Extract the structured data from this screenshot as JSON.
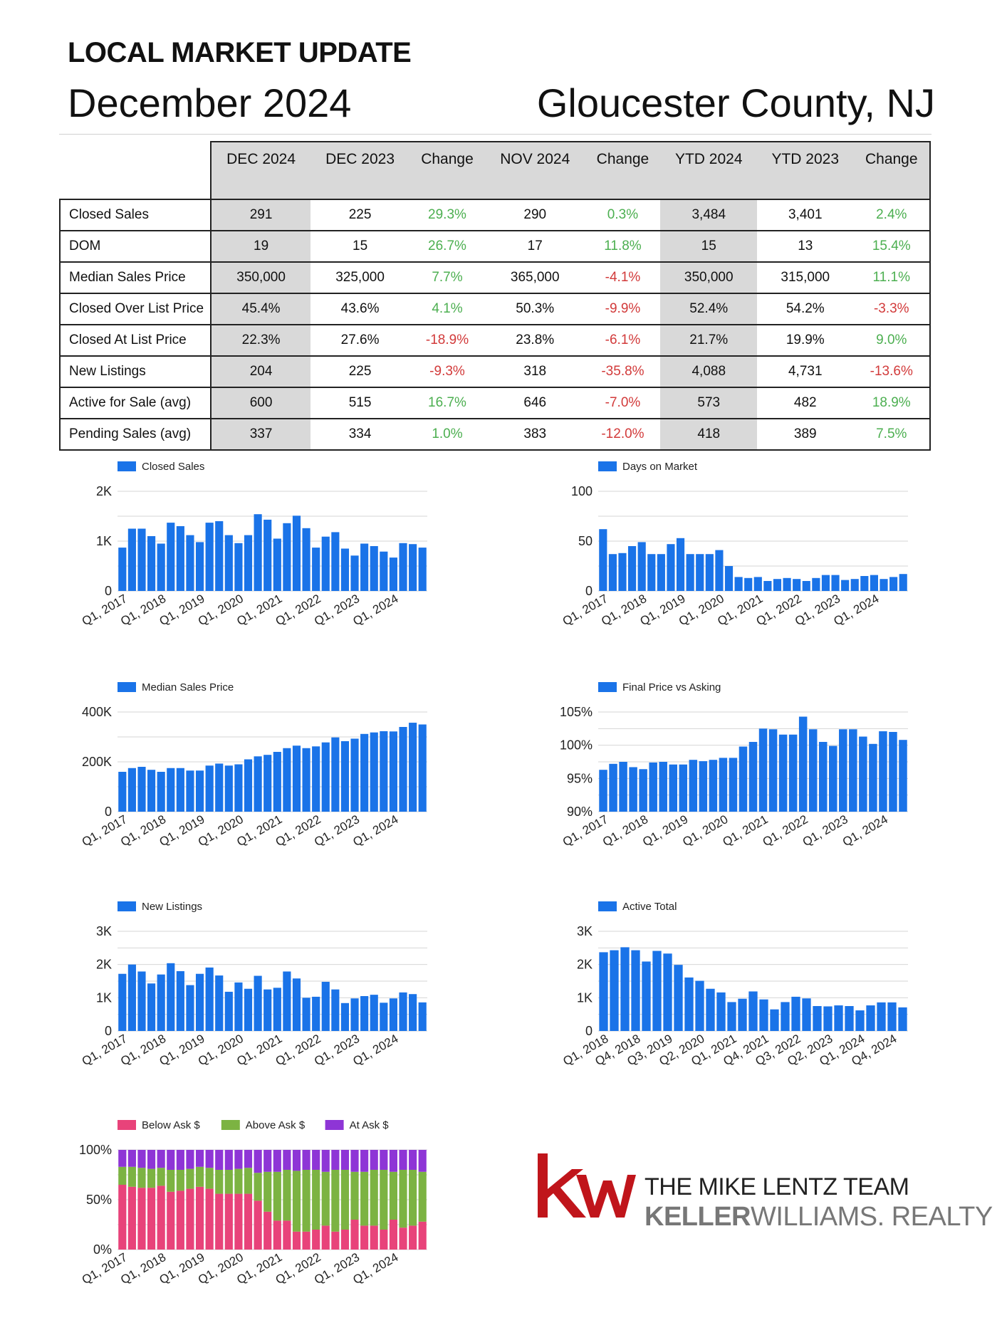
{
  "header": {
    "title": "LOCAL MARKET UPDATE",
    "date": "December 2024",
    "location": "Gloucester County, NJ"
  },
  "table": {
    "columns": [
      "DEC 2024",
      "DEC 2023",
      "Change",
      "NOV 2024",
      "Change",
      "YTD 2024",
      "YTD 2023",
      "Change"
    ],
    "rows": [
      {
        "label": "Closed Sales",
        "values": [
          "291",
          "225",
          "29.3%",
          "290",
          "0.3%",
          "3,484",
          "3,401",
          "2.4%"
        ]
      },
      {
        "label": "DOM",
        "values": [
          "19",
          "15",
          "26.7%",
          "17",
          "11.8%",
          "15",
          "13",
          "15.4%"
        ]
      },
      {
        "label": "Median Sales Price",
        "values": [
          "350,000",
          "325,000",
          "7.7%",
          "365,000",
          "-4.1%",
          "350,000",
          "315,000",
          "11.1%"
        ]
      },
      {
        "label": "Closed Over List Price",
        "values": [
          "45.4%",
          "43.6%",
          "4.1%",
          "50.3%",
          "-9.9%",
          "52.4%",
          "54.2%",
          "-3.3%"
        ]
      },
      {
        "label": "Closed At List Price",
        "values": [
          "22.3%",
          "27.6%",
          "-18.9%",
          "23.8%",
          "-6.1%",
          "21.7%",
          "19.9%",
          "9.0%"
        ]
      },
      {
        "label": "New Listings",
        "values": [
          "204",
          "225",
          "-9.3%",
          "318",
          "-35.8%",
          "4,088",
          "4,731",
          "-13.6%"
        ]
      },
      {
        "label": "Active for Sale (avg)",
        "values": [
          "600",
          "515",
          "16.7%",
          "646",
          "-7.0%",
          "573",
          "482",
          "18.9%"
        ]
      },
      {
        "label": "Pending Sales (avg)",
        "values": [
          "337",
          "334",
          "1.0%",
          "383",
          "-12.0%",
          "418",
          "389",
          "7.5%"
        ]
      }
    ],
    "positive_color": "#4caf50",
    "negative_color": "#d23a3a"
  },
  "colors": {
    "bar": "#1a73e8",
    "below": "#e8437a",
    "above": "#7cb342",
    "at": "#8e35d6",
    "grid": "#d6d6d6"
  },
  "chart_data": [
    {
      "id": "closed",
      "type": "bar",
      "title": "",
      "legend": [
        "Closed Sales"
      ],
      "ylim": [
        0,
        2000
      ],
      "yticks": [
        {
          "v": 0,
          "t": "0"
        },
        {
          "v": 1000,
          "t": "1K"
        },
        {
          "v": 2000,
          "t": "2K"
        }
      ],
      "xticks": [
        "Q1, 2017",
        "Q1, 2018",
        "Q1, 2019",
        "Q1, 2020",
        "Q1, 2021",
        "Q1, 2022",
        "Q1, 2023",
        "Q1, 2024"
      ],
      "values": [
        870,
        1250,
        1250,
        1100,
        950,
        1370,
        1300,
        1120,
        980,
        1370,
        1400,
        1120,
        960,
        1120,
        1540,
        1430,
        1050,
        1360,
        1510,
        1260,
        870,
        1090,
        1180,
        850,
        710,
        950,
        900,
        790,
        670,
        960,
        940,
        870
      ]
    },
    {
      "id": "dom",
      "type": "bar",
      "title": "",
      "legend": [
        "Days on Market"
      ],
      "ylim": [
        0,
        100
      ],
      "yticks": [
        {
          "v": 0,
          "t": "0"
        },
        {
          "v": 50,
          "t": "50"
        },
        {
          "v": 100,
          "t": "100"
        }
      ],
      "xticks": [
        "Q1, 2017",
        "Q1, 2018",
        "Q1, 2019",
        "Q1, 2020",
        "Q1, 2021",
        "Q1, 2022",
        "Q1, 2023",
        "Q1, 2024"
      ],
      "values": [
        62,
        37,
        38,
        45,
        49,
        37,
        37,
        47,
        53,
        37,
        37,
        37,
        41,
        25,
        14,
        13,
        14,
        10,
        12,
        13,
        12,
        10,
        13,
        16,
        16,
        11,
        12,
        15,
        16,
        12,
        14,
        17
      ]
    },
    {
      "id": "price",
      "type": "bar",
      "title": "",
      "legend": [
        "Median Sales Price"
      ],
      "ylim": [
        0,
        400000
      ],
      "yticks": [
        {
          "v": 0,
          "t": "0"
        },
        {
          "v": 200000,
          "t": "200K"
        },
        {
          "v": 400000,
          "t": "400K"
        }
      ],
      "xticks": [
        "Q1, 2017",
        "Q1, 2018",
        "Q1, 2019",
        "Q1, 2020",
        "Q1, 2021",
        "Q1, 2022",
        "Q1, 2023",
        "Q1, 2024"
      ],
      "values": [
        160000,
        175000,
        180000,
        168000,
        160000,
        175000,
        175000,
        165000,
        165000,
        185000,
        193000,
        185000,
        190000,
        210000,
        222000,
        228000,
        240000,
        255000,
        265000,
        255000,
        262000,
        278000,
        298000,
        283000,
        293000,
        312000,
        318000,
        323000,
        322000,
        340000,
        357000,
        350000
      ]
    },
    {
      "id": "final",
      "type": "bar",
      "title": "",
      "legend": [
        "Final Price vs Asking"
      ],
      "ylim": [
        90,
        105
      ],
      "yticks": [
        {
          "v": 90,
          "t": "90%"
        },
        {
          "v": 95,
          "t": "95%"
        },
        {
          "v": 100,
          "t": "100%"
        },
        {
          "v": 105,
          "t": "105%"
        }
      ],
      "xticks": [
        "Q1, 2017",
        "Q1, 2018",
        "Q1, 2019",
        "Q1, 2020",
        "Q1, 2021",
        "Q1, 2022",
        "Q1, 2023",
        "Q1, 2024"
      ],
      "values": [
        96.3,
        97.2,
        97.5,
        96.7,
        96.4,
        97.4,
        97.5,
        97.1,
        97.1,
        97.8,
        97.6,
        97.8,
        98.1,
        98.1,
        99.8,
        100.5,
        102.5,
        102.4,
        101.6,
        101.6,
        104.3,
        102.4,
        100.5,
        99.9,
        102.4,
        102.4,
        101.3,
        100.2,
        102.1,
        102.0,
        100.8
      ]
    },
    {
      "id": "listings",
      "type": "bar",
      "title": "",
      "legend": [
        "New Listings"
      ],
      "ylim": [
        0,
        3000
      ],
      "yticks": [
        {
          "v": 0,
          "t": "0"
        },
        {
          "v": 1000,
          "t": "1K"
        },
        {
          "v": 2000,
          "t": "2K"
        },
        {
          "v": 3000,
          "t": "3K"
        }
      ],
      "xticks": [
        "Q1, 2017",
        "Q1, 2018",
        "Q1, 2019",
        "Q1, 2020",
        "Q1, 2021",
        "Q1, 2022",
        "Q1, 2023",
        "Q1, 2024"
      ],
      "values": [
        1720,
        2000,
        1790,
        1430,
        1700,
        2040,
        1800,
        1380,
        1720,
        1910,
        1670,
        1180,
        1460,
        1270,
        1660,
        1250,
        1300,
        1790,
        1580,
        1000,
        1030,
        1480,
        1250,
        840,
        980,
        1050,
        1090,
        850,
        980,
        1160,
        1110,
        860
      ]
    },
    {
      "id": "active",
      "type": "bar",
      "title": "",
      "legend": [
        "Active Total"
      ],
      "ylim": [
        0,
        3000
      ],
      "yticks": [
        {
          "v": 0,
          "t": "0"
        },
        {
          "v": 1000,
          "t": "1K"
        },
        {
          "v": 2000,
          "t": "2K"
        },
        {
          "v": 3000,
          "t": "3K"
        }
      ],
      "xticks": [
        "Q1, 2018",
        "Q4, 2018",
        "Q3, 2019",
        "Q2, 2020",
        "Q1, 2021",
        "Q4, 2021",
        "Q3, 2022",
        "Q2, 2023",
        "Q1, 2024",
        "Q4, 2024"
      ],
      "values": [
        2370,
        2430,
        2520,
        2430,
        2090,
        2410,
        2330,
        1990,
        1610,
        1510,
        1270,
        1160,
        870,
        970,
        1190,
        950,
        650,
        870,
        1030,
        980,
        750,
        740,
        770,
        750,
        620,
        770,
        860,
        860,
        710
      ]
    },
    {
      "id": "share",
      "type": "stacked-bar-100",
      "title": "",
      "legend": [
        "Below Ask $",
        "Above Ask $",
        "At Ask $"
      ],
      "ylim": [
        0,
        100
      ],
      "yticks": [
        {
          "v": 0,
          "t": "0%"
        },
        {
          "v": 50,
          "t": "50%"
        },
        {
          "v": 100,
          "t": "100%"
        }
      ],
      "xticks": [
        "Q1, 2017",
        "Q1, 2018",
        "Q1, 2019",
        "Q1, 2020",
        "Q1, 2021",
        "Q1, 2022",
        "Q1, 2023",
        "Q1, 2024"
      ],
      "series": [
        {
          "name": "Below Ask $",
          "values": [
            65,
            63,
            62,
            62,
            64,
            58,
            59,
            61,
            63,
            61,
            56,
            56,
            56,
            56,
            49,
            38,
            29,
            29,
            18,
            18,
            20,
            24,
            18,
            20,
            30,
            24,
            24,
            20,
            30,
            22,
            24,
            28
          ]
        },
        {
          "name": "Above Ask $",
          "values": [
            18,
            20,
            20,
            19,
            18,
            22,
            21,
            20,
            20,
            21,
            24,
            24,
            25,
            26,
            28,
            40,
            49,
            51,
            61,
            62,
            60,
            54,
            62,
            60,
            48,
            54,
            56,
            60,
            48,
            58,
            56,
            50
          ]
        }
      ]
    }
  ],
  "logo": {
    "team": "THE MIKE LENTZ TEAM",
    "brand_bold": "KELLER",
    "brand_light": "WILLIAMS.",
    "brand_tail": " REALTY"
  }
}
